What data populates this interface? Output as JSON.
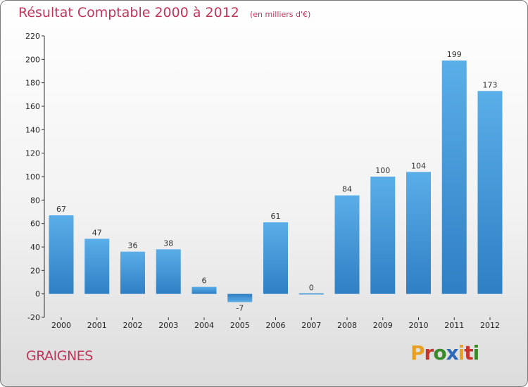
{
  "chart_data": {
    "type": "bar",
    "title": "Résultat Comptable 2000 à 2012",
    "subtitle": "(en milliers d'€)",
    "xlabel": "",
    "ylabel": "",
    "categories": [
      "2000",
      "2001",
      "2002",
      "2003",
      "2004",
      "2005",
      "2006",
      "2007",
      "2008",
      "2009",
      "2010",
      "2011",
      "2012"
    ],
    "values": [
      67,
      47,
      36,
      38,
      6,
      -7,
      61,
      0,
      84,
      100,
      104,
      199,
      173
    ],
    "data_labels": [
      "67",
      "47",
      "36",
      "38",
      "6",
      "-7",
      "61",
      "0",
      "84",
      "100",
      "104",
      "199",
      "173"
    ],
    "ylim": [
      -20,
      220
    ],
    "yticks": [
      -20,
      0,
      20,
      40,
      60,
      80,
      100,
      120,
      140,
      160,
      180,
      200,
      220
    ],
    "grid": false,
    "legend": "none",
    "bar_color_light": "#5aaee8",
    "bar_color_dark": "#2f7fc4"
  },
  "footer": {
    "commune": "GRAIGNES",
    "logo_text": "Proxiti",
    "logo_colors": [
      "#e8a020",
      "#c8342c",
      "#3a8a2a",
      "#2a6ab8",
      "#e8a020",
      "#c8342c",
      "#3a8a2a"
    ]
  },
  "colors": {
    "title": "#c0355a"
  }
}
